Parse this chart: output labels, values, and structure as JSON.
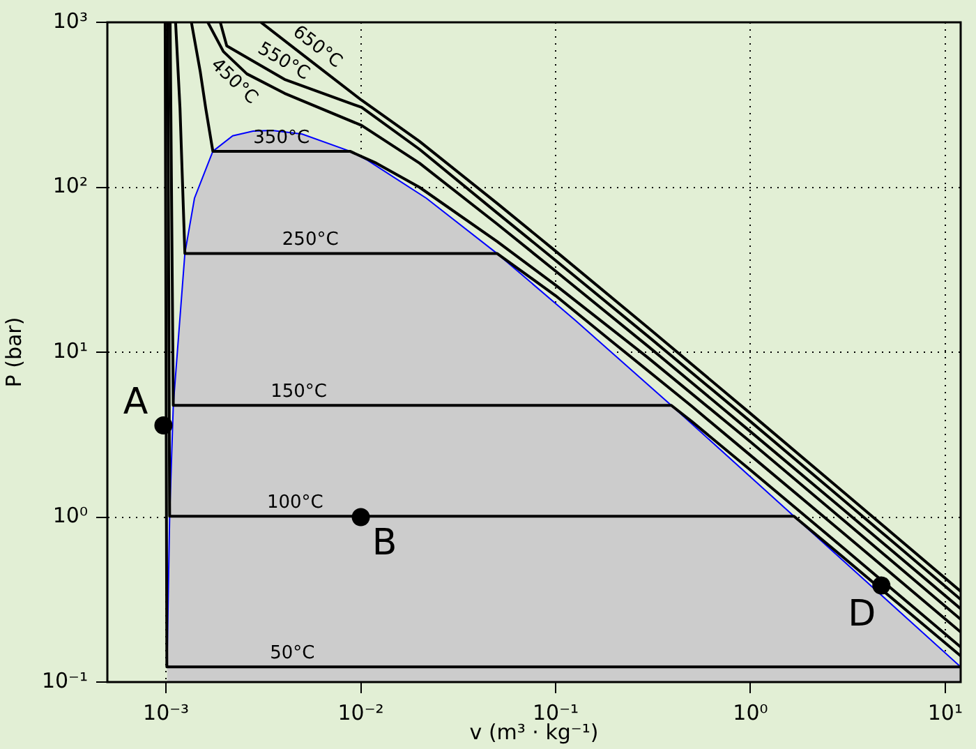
{
  "chart_data": {
    "type": "line",
    "xlabel": "v (m³ · kg⁻¹)",
    "ylabel": "P (bar)",
    "log": "xy",
    "grid": true,
    "legend": false,
    "xlim": [
      0.0005,
      12
    ],
    "ylim": [
      0.1,
      1000
    ],
    "xticks": [
      {
        "value": 0.001,
        "label": "10⁻³"
      },
      {
        "value": 0.01,
        "label": "10⁻²"
      },
      {
        "value": 0.1,
        "label": "10⁻¹"
      },
      {
        "value": 1,
        "label": "10⁰"
      },
      {
        "value": 10,
        "label": "10¹"
      }
    ],
    "yticks": [
      {
        "value": 0.1,
        "label": "10⁻¹"
      },
      {
        "value": 1,
        "label": "10⁰"
      },
      {
        "value": 10,
        "label": "10¹"
      },
      {
        "value": 100,
        "label": "10²"
      },
      {
        "value": 1000,
        "label": "10³"
      }
    ],
    "series": [
      {
        "type": "area",
        "color": "#0000ff",
        "x": [
          0.001012,
          0.001044,
          0.00109,
          0.00125,
          0.0014,
          0.00174,
          0.0022,
          0.0028,
          0.0035,
          0.005,
          0.0088,
          0.0108,
          0.0217,
          0.05,
          0.127,
          0.3925,
          1.673,
          4.13,
          12
        ],
        "values": [
          0.1235,
          1.013,
          4.76,
          39.7,
          85.8,
          165.3,
          205,
          219,
          221,
          210,
          165.3,
          145.9,
          85.8,
          39.7,
          15.5,
          4.76,
          1.013,
          0.386,
          0.1235
        ]
      },
      {
        "name": "50°C",
        "color": "#000000",
        "x": [
          0.00099,
          0.00101,
          12
        ],
        "values": [
          1000,
          0.1235,
          0.1235
        ]
      },
      {
        "name": "100°C",
        "color": "#000000",
        "x": [
          0.00102,
          0.001044,
          1.673,
          3,
          12
        ],
        "values": [
          1000,
          1.013,
          1.013,
          0.57,
          0.144
        ]
      },
      {
        "name": "150°C",
        "color": "#000000",
        "x": [
          0.00105,
          0.00109,
          0.3925,
          0.5,
          1,
          3,
          12
        ],
        "values": [
          1000,
          4.76,
          4.76,
          3.8,
          1.93,
          0.65,
          0.163
        ]
      },
      {
        "name": "250°C",
        "color": "#000000",
        "x": [
          0.00112,
          0.00118,
          0.00125,
          0.05,
          0.1,
          0.2,
          0.5,
          1,
          3,
          12
        ],
        "values": [
          1000,
          300,
          39.7,
          39.7,
          22,
          11.3,
          4.7,
          2.37,
          0.8,
          0.201
        ]
      },
      {
        "name": "350°C",
        "color": "#000000",
        "x": [
          0.00135,
          0.0015,
          0.0016,
          0.00174,
          0.0088,
          0.012,
          0.02,
          0.05,
          0.1,
          0.3,
          1,
          3,
          12
        ],
        "values": [
          1000,
          500,
          300,
          165.3,
          165.3,
          140,
          100,
          47,
          25.5,
          9.2,
          2.86,
          0.96,
          0.24
        ]
      },
      {
        "name": "450°C",
        "color": "#000000",
        "x": [
          0.00164,
          0.00197,
          0.0026,
          0.00406,
          0.0101,
          0.02,
          0.05,
          0.1,
          0.3,
          1,
          3,
          12
        ],
        "values": [
          1000,
          665,
          487,
          371,
          237,
          140,
          60,
          31,
          10.8,
          3.3,
          1.11,
          0.278
        ]
      },
      {
        "name": "550°C",
        "color": "#000000",
        "x": [
          0.0019,
          0.00205,
          0.00406,
          0.0101,
          0.02,
          0.05,
          0.1,
          0.3,
          1,
          3,
          12
        ],
        "values": [
          1000,
          720,
          451,
          305,
          170,
          70,
          36,
          12.4,
          3.8,
          1.27,
          0.317
        ]
      },
      {
        "name": "650°C",
        "color": "#000000",
        "x": [
          0.00307,
          0.005,
          0.0101,
          0.02,
          0.05,
          0.1,
          0.3,
          1,
          3,
          12
        ],
        "values": [
          1000,
          640,
          337,
          190,
          80,
          41,
          14,
          4.25,
          1.42,
          0.355
        ]
      },
      {
        "type": "scatter",
        "marker": "circle",
        "color": "#000000",
        "x": [
          0.00097,
          0.01,
          4.7
        ],
        "values": [
          3.6,
          1,
          0.385
        ]
      }
    ],
    "annotations": [
      {
        "text": "A",
        "x": 0.00097,
        "y": 3.6
      },
      {
        "text": "B",
        "x": 0.01,
        "y": 1
      },
      {
        "text": "D",
        "x": 4.7,
        "y": 0.385
      }
    ]
  }
}
